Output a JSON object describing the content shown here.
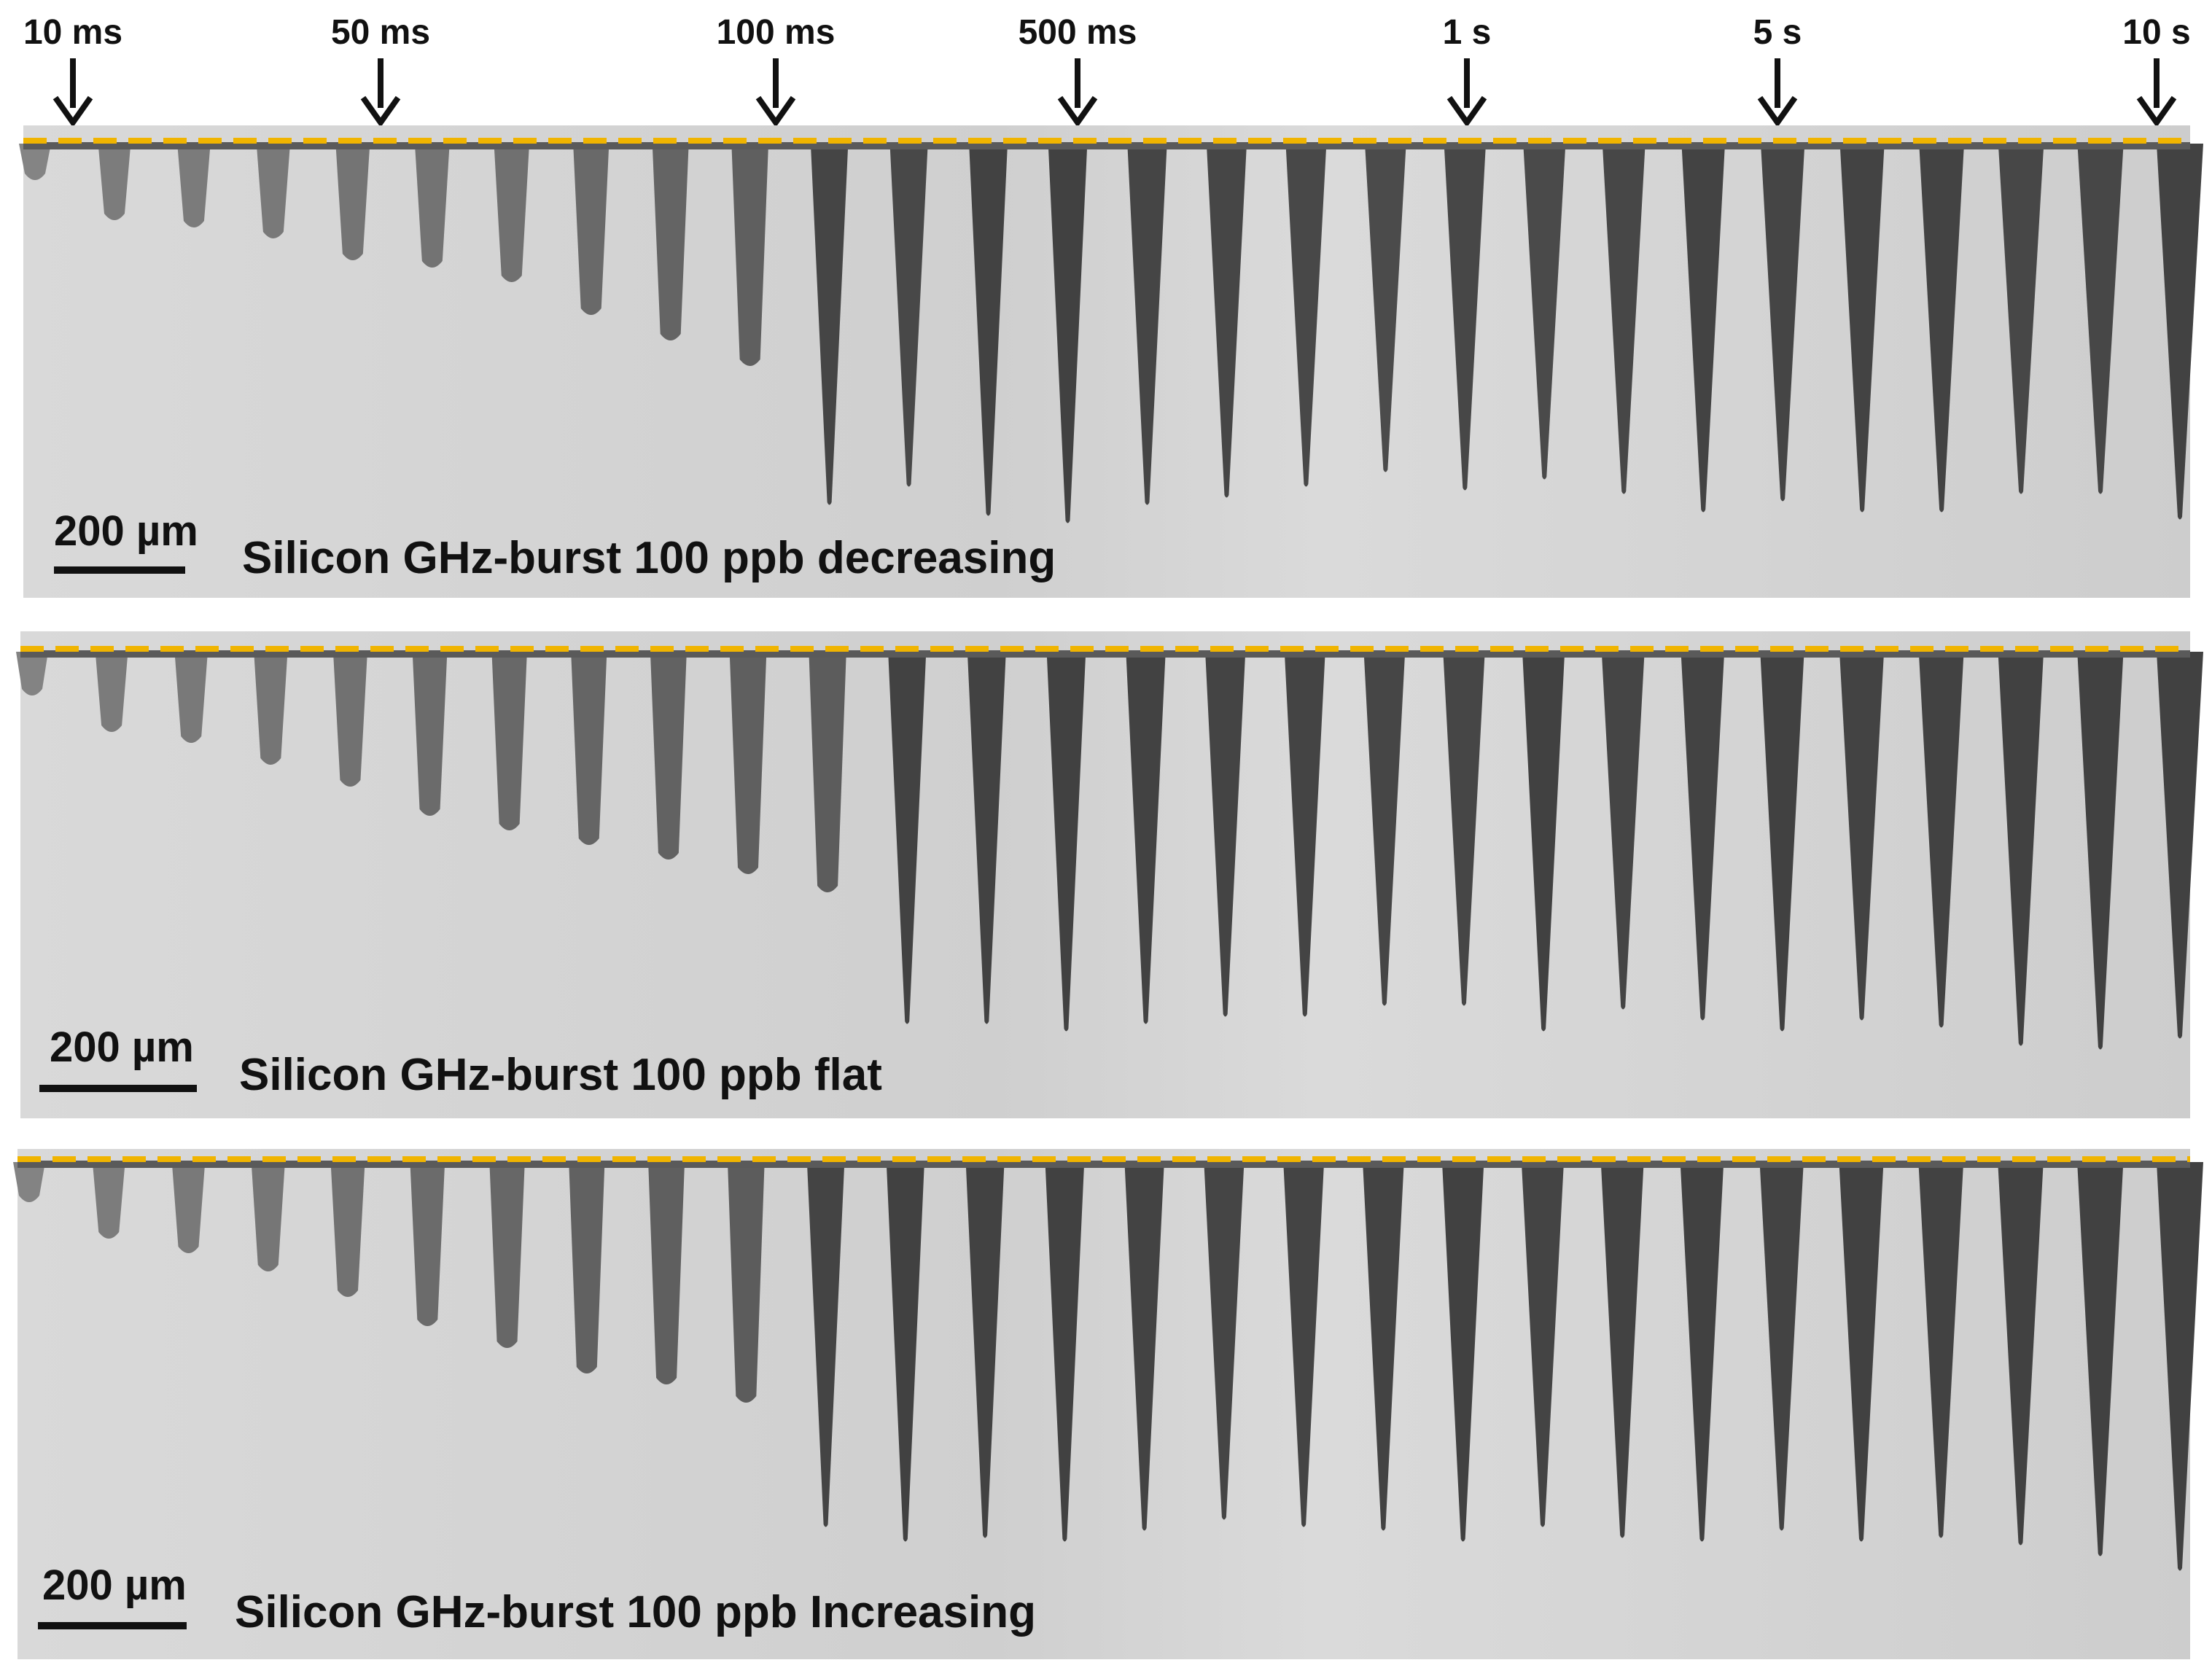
{
  "time_markers": [
    "10 ms",
    "50 ms",
    "100 ms",
    "500 ms",
    "1 s",
    "5 s",
    "10 s"
  ],
  "panels": [
    {
      "scale_label": "200 µm",
      "caption": "Silicon GHz-burst 100 ppb decreasing",
      "trench_depths": [
        55,
        110,
        120,
        135,
        165,
        175,
        195,
        240,
        275,
        310,
        495,
        470,
        510,
        520,
        495,
        485,
        470,
        450,
        475,
        460,
        480,
        505,
        490,
        505,
        505,
        480,
        480,
        515
      ]
    },
    {
      "scale_label": "200 µm",
      "caption": "Silicon GHz-burst 100 ppb flat",
      "trench_depths": [
        65,
        115,
        130,
        160,
        190,
        230,
        250,
        270,
        290,
        310,
        335,
        510,
        510,
        520,
        510,
        500,
        500,
        485,
        485,
        520,
        490,
        505,
        520,
        505,
        515,
        540,
        545,
        530
      ]
    },
    {
      "scale_label": "200 µm",
      "caption": "Silicon GHz-burst 100 ppb Increasing",
      "trench_depths": [
        60,
        110,
        130,
        155,
        190,
        230,
        260,
        295,
        310,
        335,
        500,
        520,
        515,
        520,
        505,
        490,
        500,
        505,
        520,
        500,
        515,
        520,
        505,
        520,
        515,
        525,
        540,
        560
      ]
    }
  ],
  "colors": {
    "reference_line": "#f0b400",
    "trench_dark": "#4a4a4a",
    "background": "#d3d3d3",
    "text": "#111111"
  }
}
